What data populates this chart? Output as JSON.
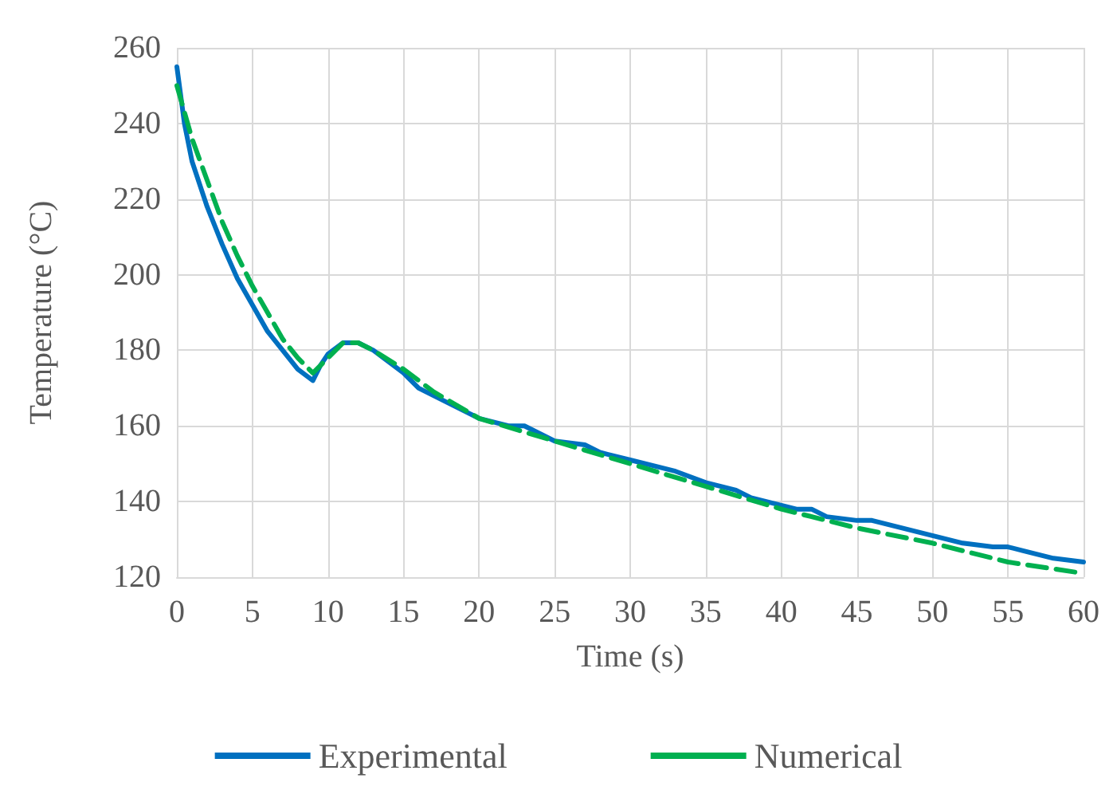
{
  "chart_data": {
    "type": "line",
    "xlabel": "Time (s)",
    "ylabel": "Temperature (°C)",
    "xlim": [
      0,
      60
    ],
    "xticks": [
      0,
      5,
      10,
      15,
      20,
      25,
      30,
      35,
      40,
      45,
      50,
      55,
      60
    ],
    "ylim": [
      120,
      260
    ],
    "yticks": [
      120,
      140,
      160,
      180,
      200,
      220,
      240,
      260
    ],
    "grid": true,
    "legend": "bottom",
    "marker": "none",
    "series": [
      {
        "name": "Experimental",
        "color": "#0070c0",
        "line_style": "solid",
        "x": [
          0,
          0.5,
          1,
          2,
          3,
          4,
          5,
          6,
          7,
          8,
          9,
          9.5,
          10,
          11,
          12,
          13,
          14,
          15,
          16,
          17,
          18,
          19,
          20,
          22,
          23,
          24,
          25,
          27,
          28,
          30,
          32,
          33,
          35,
          36,
          37,
          38,
          40,
          41,
          42,
          43,
          45,
          46,
          48,
          50,
          52,
          54,
          55,
          56,
          58,
          60
        ],
        "values": [
          255,
          240,
          230,
          218,
          208,
          199,
          192,
          185,
          180,
          175,
          172,
          176,
          179,
          182,
          182,
          180,
          177,
          174,
          170,
          168,
          166,
          164,
          162,
          160,
          160,
          158,
          156,
          155,
          153,
          151,
          149,
          148,
          145,
          144,
          143,
          141,
          139,
          138,
          138,
          136,
          135,
          135,
          133,
          131,
          129,
          128,
          128,
          127,
          125,
          124
        ]
      },
      {
        "name": "Numerical",
        "color": "#00b050",
        "line_style": "dashed",
        "x": [
          0,
          1,
          2,
          3,
          4,
          5,
          6,
          7,
          8,
          9,
          10,
          11,
          12,
          13,
          15,
          17,
          20,
          25,
          30,
          35,
          40,
          45,
          50,
          55,
          60
        ],
        "values": [
          250,
          236,
          225,
          214,
          205,
          197,
          190,
          183,
          178,
          174,
          178,
          182,
          182,
          180,
          175,
          169,
          162,
          156,
          150,
          144,
          138,
          133,
          129,
          124,
          121
        ]
      }
    ]
  }
}
